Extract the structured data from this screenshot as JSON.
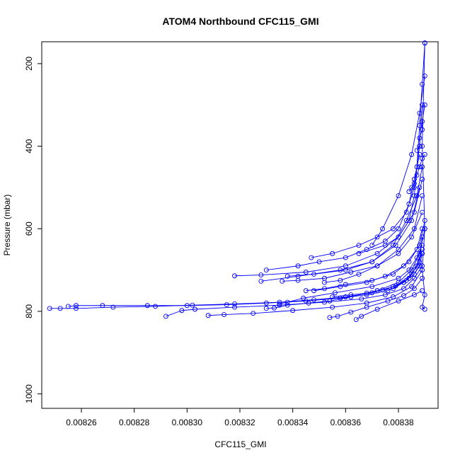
{
  "chart_data": {
    "type": "line",
    "title": "ATOM4 Northbound CFC115_GMI",
    "xlabel": "CFC115_GMI",
    "ylabel": "Pressure (mbar)",
    "xlim": [
      0.008245,
      0.008395
    ],
    "ylim": [
      1035,
      147
    ],
    "y_reversed": true,
    "x_ticks": [
      "0.00826",
      "0.00828",
      "0.00830",
      "0.00832",
      "0.00834",
      "0.00836",
      "0.00838"
    ],
    "x_tick_values": [
      0.00826,
      0.00828,
      0.0083,
      0.00832,
      0.00834,
      0.00836,
      0.00838
    ],
    "y_ticks": [
      "200",
      "400",
      "600",
      "800",
      "1000"
    ],
    "y_tick_values": [
      200,
      400,
      600,
      800,
      1000
    ],
    "grid": false,
    "series_color": "#0000ff",
    "marker": "open-circle",
    "series": [
      {
        "x": [
          0.00839,
          0.008389,
          0.008388,
          0.008387,
          0.008386,
          0.008384,
          0.00838,
          0.008375,
          0.008365
        ],
        "y": [
          150,
          250,
          350,
          450,
          520,
          580,
          620,
          640,
          660
        ]
      },
      {
        "x": [
          0.008389,
          0.008388,
          0.008386,
          0.008383,
          0.008378,
          0.008372,
          0.008365,
          0.008355,
          0.008347
        ],
        "y": [
          300,
          400,
          500,
          560,
          600,
          620,
          640,
          660,
          670
        ]
      },
      {
        "x": [
          0.008388,
          0.008386,
          0.008384,
          0.00838,
          0.008375,
          0.008368,
          0.00836,
          0.00835,
          0.008342,
          0.00833
        ],
        "y": [
          420,
          480,
          540,
          600,
          630,
          650,
          670,
          680,
          690,
          700
        ]
      },
      {
        "x": [
          0.008389,
          0.008387,
          0.008383,
          0.008378,
          0.00837,
          0.00836,
          0.008348,
          0.008338
        ],
        "y": [
          450,
          520,
          580,
          640,
          680,
          700,
          710,
          715
        ]
      },
      {
        "x": [
          0.008389,
          0.008386,
          0.00838,
          0.008372,
          0.00836,
          0.008345,
          0.008328,
          0.008318
        ],
        "y": [
          480,
          560,
          620,
          660,
          690,
          705,
          712,
          714
        ]
      },
      {
        "x": [
          0.008388,
          0.008385,
          0.008379,
          0.00837,
          0.008358,
          0.008342,
          0.008328
        ],
        "y": [
          500,
          580,
          640,
          680,
          700,
          715,
          727
        ]
      },
      {
        "x": [
          0.008389,
          0.008386,
          0.00838,
          0.008372,
          0.008362,
          0.008352,
          0.008342,
          0.008336
        ],
        "y": [
          520,
          600,
          650,
          690,
          705,
          720,
          725,
          727
        ]
      },
      {
        "x": [
          0.008389,
          0.008385,
          0.00838,
          0.008372,
          0.008365,
          0.008358,
          0.008352
        ],
        "y": [
          560,
          620,
          660,
          690,
          710,
          725,
          730
        ]
      },
      {
        "x": [
          0.00839,
          0.008388,
          0.008384,
          0.008378,
          0.00837,
          0.00836,
          0.008352,
          0.008345
        ],
        "y": [
          580,
          640,
          680,
          710,
          725,
          735,
          745,
          750
        ]
      },
      {
        "x": [
          0.008389,
          0.008387,
          0.008382,
          0.008375,
          0.008368,
          0.008358,
          0.008348
        ],
        "y": [
          600,
          650,
          690,
          715,
          730,
          740,
          750
        ]
      },
      {
        "x": [
          0.008389,
          0.008388,
          0.008385,
          0.008382,
          0.008378,
          0.008372
        ],
        "y": [
          620,
          680,
          710,
          730,
          745,
          750
        ]
      },
      {
        "x": [
          0.008389,
          0.008388,
          0.008386,
          0.008383,
          0.008379,
          0.008374,
          0.008368,
          0.008362,
          0.008355
        ],
        "y": [
          660,
          690,
          710,
          725,
          738,
          748,
          756,
          760,
          765
        ]
      },
      {
        "x": [
          0.008389,
          0.008387,
          0.008384,
          0.00838,
          0.00837,
          0.008356,
          0.008344,
          0.008338,
          0.008335
        ],
        "y": [
          640,
          670,
          700,
          720,
          740,
          755,
          768,
          778,
          782
        ]
      },
      {
        "x": [
          0.00839,
          0.008388,
          0.008385,
          0.00838,
          0.008372,
          0.008362,
          0.008354,
          0.008346,
          0.008338,
          0.008333,
          0.00833
        ],
        "y": [
          600,
          660,
          700,
          730,
          750,
          765,
          775,
          780,
          785,
          792,
          793
        ]
      },
      {
        "x": [
          0.008389,
          0.008386,
          0.008382,
          0.008376,
          0.008368,
          0.008358,
          0.008345,
          0.00833,
          0.008315,
          0.0083,
          0.008285,
          0.008268,
          0.008258,
          0.008255
        ],
        "y": [
          660,
          700,
          730,
          750,
          760,
          768,
          775,
          780,
          784,
          786,
          786,
          786,
          786,
          788
        ]
      },
      {
        "x": [
          0.008389,
          0.008387,
          0.008384,
          0.008378,
          0.00837,
          0.00836,
          0.008348,
          0.008335,
          0.008318,
          0.008302,
          0.008288,
          0.008272,
          0.008258,
          0.008252,
          0.008248
        ],
        "y": [
          650,
          690,
          720,
          740,
          755,
          765,
          772,
          778,
          782,
          785,
          788,
          790,
          793,
          793,
          793
        ]
      },
      {
        "x": [
          0.008389,
          0.008386,
          0.008382,
          0.008375,
          0.008366,
          0.008352,
          0.008335,
          0.008318,
          0.008303,
          0.008298,
          0.008292
        ],
        "y": [
          690,
          720,
          745,
          760,
          770,
          778,
          785,
          790,
          795,
          798,
          812
        ]
      },
      {
        "x": [
          0.008389,
          0.008385,
          0.008378,
          0.008368,
          0.008355,
          0.00834,
          0.008325,
          0.008314,
          0.008308
        ],
        "y": [
          700,
          740,
          765,
          780,
          790,
          798,
          805,
          808,
          810
        ]
      },
      {
        "x": [
          0.008389,
          0.008386,
          0.008382,
          0.008376,
          0.008368,
          0.008362,
          0.008357,
          0.008354
        ],
        "y": [
          720,
          745,
          762,
          775,
          790,
          802,
          812,
          815
        ]
      },
      {
        "x": [
          0.008389,
          0.008386,
          0.00838,
          0.008372,
          0.008366,
          0.008364
        ],
        "y": [
          750,
          760,
          775,
          795,
          812,
          820
        ]
      },
      {
        "x": [
          0.00839,
          0.008389,
          0.008388,
          0.008387,
          0.008386,
          0.008385,
          0.008384
        ],
        "y": [
          420,
          430,
          450,
          470,
          490,
          500,
          510
        ]
      },
      {
        "x": [
          0.00839,
          0.008389,
          0.008389,
          0.008388,
          0.008388,
          0.008387
        ],
        "y": [
          300,
          340,
          360,
          380,
          400,
          410
        ]
      },
      {
        "x": [
          0.00839,
          0.008388,
          0.008385,
          0.00838,
          0.008374,
          0.00837
        ],
        "y": [
          230,
          320,
          420,
          520,
          600,
          640
        ]
      },
      {
        "x": [
          0.00839,
          0.008389,
          0.00839,
          0.008389,
          0.00839,
          0.008389,
          0.00839
        ],
        "y": [
          150,
          400,
          600,
          700,
          760,
          790,
          795
        ]
      }
    ]
  }
}
